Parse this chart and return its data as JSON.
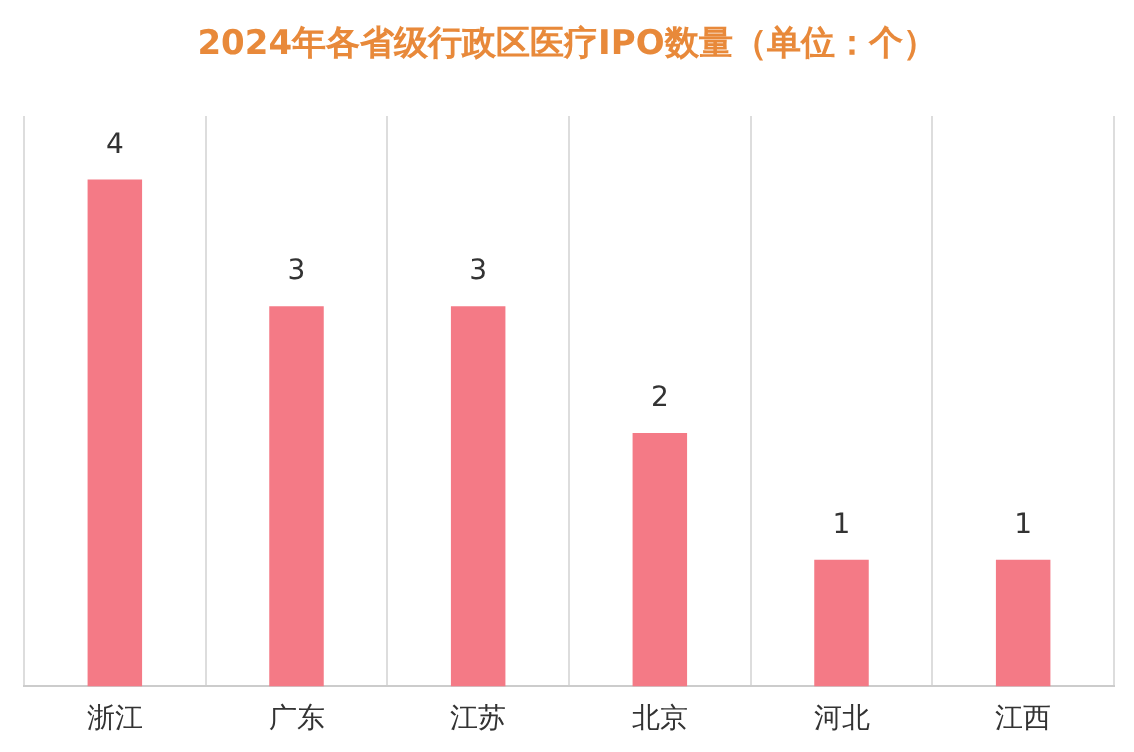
{
  "chart_data": {
    "type": "bar",
    "title": "2024年各省级行政区医疗IPO数量（单位：个）",
    "categories": [
      "浙江",
      "广东",
      "江苏",
      "北京",
      "河北",
      "江西"
    ],
    "values": [
      4,
      3,
      3,
      2,
      1,
      1
    ],
    "color": "#f47a86",
    "data_labels": true,
    "grid": "x"
  }
}
